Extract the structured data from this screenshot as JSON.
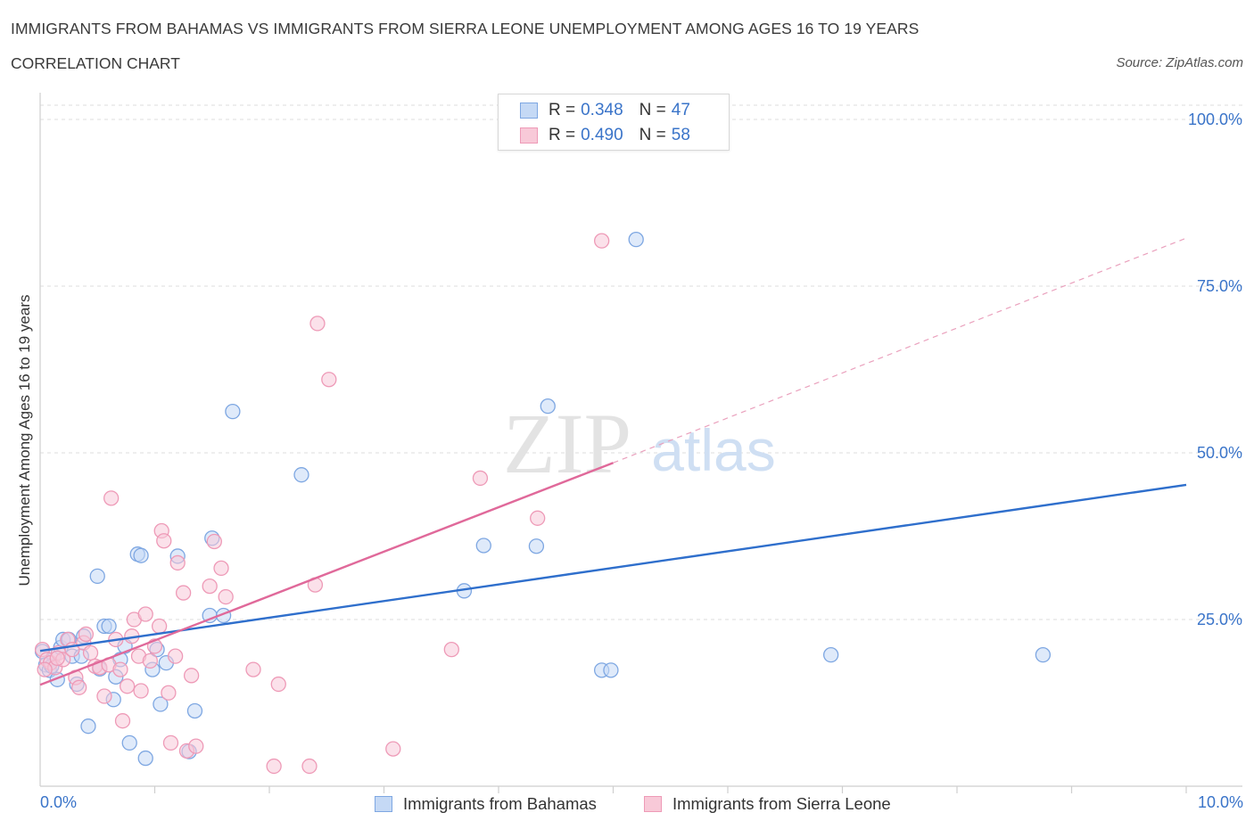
{
  "title": "IMMIGRANTS FROM BAHAMAS VS IMMIGRANTS FROM SIERRA LEONE UNEMPLOYMENT AMONG AGES 16 TO 19 YEARS",
  "subtitle": "CORRELATION CHART",
  "source": "Source: ZipAtlas.com",
  "watermark": {
    "zip": "ZIP",
    "atlas": "atlas"
  },
  "legend": {
    "r_label": "R =",
    "n_label": "N =",
    "series": [
      {
        "r": "0.348",
        "n": "47"
      },
      {
        "r": "0.490",
        "n": "58"
      }
    ]
  },
  "colors": {
    "bahamas_fill": "#c5d9f5",
    "bahamas_stroke": "#7ea7e2",
    "bahamas_line": "#2f6fcc",
    "sierra_fill": "#f8c9d8",
    "sierra_stroke": "#ee9ab7",
    "sierra_line": "#e0699a",
    "tick_text": "#3a74c9",
    "grid": "#dedede"
  },
  "chart_data": {
    "type": "scatter",
    "title": "IMMIGRANTS FROM BAHAMAS VS IMMIGRANTS FROM SIERRA LEONE UNEMPLOYMENT AMONG AGES 16 TO 19 YEARS",
    "xlabel": "",
    "ylabel": "Unemployment Among Ages 16 to 19 years",
    "xlim": [
      0,
      10
    ],
    "ylim": [
      0,
      100
    ],
    "x_tick_labels": [
      "0.0%",
      "10.0%"
    ],
    "y_ticks": [
      25,
      50,
      75,
      100
    ],
    "y_tick_labels": [
      "25.0%",
      "50.0%",
      "75.0%",
      "100.0%"
    ],
    "grid": true,
    "series": [
      {
        "name": "Immigrants from Bahamas",
        "r": 0.348,
        "n": 47,
        "trend": {
          "x0": 0,
          "y0": 20.3,
          "x1": 10,
          "y1": 45.2
        },
        "points": [
          [
            0.02,
            20.2
          ],
          [
            0.05,
            18.2
          ],
          [
            0.08,
            17.4
          ],
          [
            0.12,
            19.5
          ],
          [
            0.15,
            16.0
          ],
          [
            0.18,
            20.8
          ],
          [
            0.2,
            22.0
          ],
          [
            0.25,
            22.0
          ],
          [
            0.28,
            19.5
          ],
          [
            0.32,
            15.3
          ],
          [
            0.36,
            19.5
          ],
          [
            0.38,
            22.5
          ],
          [
            0.42,
            9.0
          ],
          [
            0.5,
            31.5
          ],
          [
            0.52,
            17.6
          ],
          [
            0.56,
            24.0
          ],
          [
            0.6,
            24.0
          ],
          [
            0.64,
            13.0
          ],
          [
            0.66,
            16.4
          ],
          [
            0.7,
            19.0
          ],
          [
            0.74,
            21.0
          ],
          [
            0.78,
            6.5
          ],
          [
            0.85,
            34.8
          ],
          [
            0.88,
            34.6
          ],
          [
            0.92,
            4.2
          ],
          [
            0.98,
            17.5
          ],
          [
            1.02,
            20.5
          ],
          [
            1.05,
            12.3
          ],
          [
            1.1,
            18.5
          ],
          [
            1.2,
            34.5
          ],
          [
            1.3,
            5.2
          ],
          [
            1.35,
            11.3
          ],
          [
            1.5,
            37.2
          ],
          [
            1.48,
            25.6
          ],
          [
            1.6,
            25.6
          ],
          [
            1.68,
            56.2
          ],
          [
            2.28,
            46.7
          ],
          [
            3.7,
            29.3
          ],
          [
            3.87,
            36.1
          ],
          [
            4.33,
            36.0
          ],
          [
            4.43,
            57.0
          ],
          [
            4.9,
            17.4
          ],
          [
            4.98,
            17.4
          ],
          [
            5.2,
            82.0
          ],
          [
            6.9,
            19.7
          ],
          [
            8.75,
            19.7
          ],
          [
            0.1,
            18.0
          ]
        ]
      },
      {
        "name": "Immigrants from Sierra Leone",
        "r": 0.49,
        "n": 58,
        "trend": {
          "x0": 0,
          "y0": 15.2,
          "x1": 5.0,
          "y1": 48.5
        },
        "trend_ext": {
          "x0": 5.0,
          "y0": 48.5,
          "x1": 10,
          "y1": 82.2
        },
        "points": [
          [
            0.02,
            20.5
          ],
          [
            0.06,
            19.0
          ],
          [
            0.09,
            18.5
          ],
          [
            0.13,
            17.8
          ],
          [
            0.16,
            20.0
          ],
          [
            0.2,
            19.0
          ],
          [
            0.24,
            22.0
          ],
          [
            0.28,
            20.5
          ],
          [
            0.31,
            16.3
          ],
          [
            0.34,
            14.8
          ],
          [
            0.38,
            21.5
          ],
          [
            0.4,
            22.8
          ],
          [
            0.44,
            20.0
          ],
          [
            0.48,
            18.0
          ],
          [
            0.52,
            17.8
          ],
          [
            0.56,
            13.5
          ],
          [
            0.6,
            18.2
          ],
          [
            0.62,
            43.2
          ],
          [
            0.66,
            22.0
          ],
          [
            0.7,
            17.5
          ],
          [
            0.72,
            9.8
          ],
          [
            0.76,
            15.0
          ],
          [
            0.8,
            22.5
          ],
          [
            0.82,
            25.0
          ],
          [
            0.86,
            19.5
          ],
          [
            0.88,
            14.3
          ],
          [
            0.92,
            25.8
          ],
          [
            0.96,
            18.8
          ],
          [
            1.0,
            21.0
          ],
          [
            1.04,
            24.0
          ],
          [
            1.06,
            38.3
          ],
          [
            1.08,
            36.8
          ],
          [
            1.12,
            14.0
          ],
          [
            1.14,
            6.5
          ],
          [
            1.18,
            19.5
          ],
          [
            1.2,
            33.5
          ],
          [
            1.25,
            29.0
          ],
          [
            1.28,
            5.3
          ],
          [
            1.32,
            16.6
          ],
          [
            1.36,
            6.0
          ],
          [
            1.48,
            30.0
          ],
          [
            1.52,
            36.7
          ],
          [
            1.58,
            32.7
          ],
          [
            1.62,
            28.4
          ],
          [
            1.86,
            17.5
          ],
          [
            2.04,
            3.0
          ],
          [
            2.08,
            15.3
          ],
          [
            2.35,
            3.0
          ],
          [
            2.4,
            30.2
          ],
          [
            2.42,
            69.4
          ],
          [
            2.52,
            61.0
          ],
          [
            3.08,
            5.6
          ],
          [
            3.59,
            20.5
          ],
          [
            3.84,
            46.2
          ],
          [
            4.34,
            40.2
          ],
          [
            4.9,
            81.8
          ],
          [
            0.04,
            17.5
          ],
          [
            0.15,
            19.2
          ]
        ]
      }
    ]
  }
}
